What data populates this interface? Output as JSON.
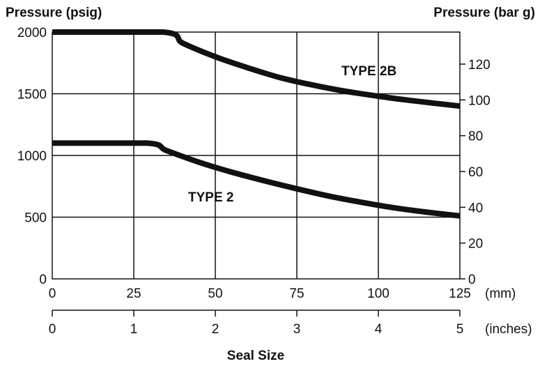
{
  "chart_data": {
    "type": "line",
    "title": "",
    "x_axis": {
      "label": "Seal Size",
      "mm": {
        "unit": "(mm)",
        "ticks": [
          0,
          25,
          50,
          75,
          100,
          125
        ],
        "range": [
          0,
          125
        ]
      },
      "inches": {
        "unit": "(inches)",
        "ticks": [
          0,
          1,
          2,
          3,
          4,
          5
        ],
        "range": [
          0,
          5
        ]
      }
    },
    "y_left": {
      "label": "Pressure (psig)",
      "ticks": [
        0,
        500,
        1000,
        1500,
        2000
      ],
      "range": [
        0,
        2000
      ]
    },
    "y_right": {
      "label": "Pressure (bar g)",
      "ticks": [
        0,
        20,
        40,
        60,
        80,
        100,
        120
      ],
      "range": [
        0,
        137.9
      ]
    },
    "grid": true,
    "series": [
      {
        "name": "TYPE 2B",
        "x": [
          0,
          34,
          40,
          50,
          60,
          70,
          80,
          90,
          100,
          110,
          125
        ],
        "y": [
          2000,
          2000,
          1910,
          1800,
          1710,
          1630,
          1570,
          1520,
          1480,
          1445,
          1400
        ]
      },
      {
        "name": "TYPE 2",
        "x": [
          0,
          29,
          35,
          45,
          55,
          65,
          75,
          85,
          95,
          105,
          115,
          125
        ],
        "y": [
          1100,
          1100,
          1040,
          945,
          865,
          795,
          730,
          670,
          620,
          575,
          540,
          510
        ]
      }
    ],
    "colors": {
      "line": "#111111",
      "grid": "#111111"
    }
  }
}
